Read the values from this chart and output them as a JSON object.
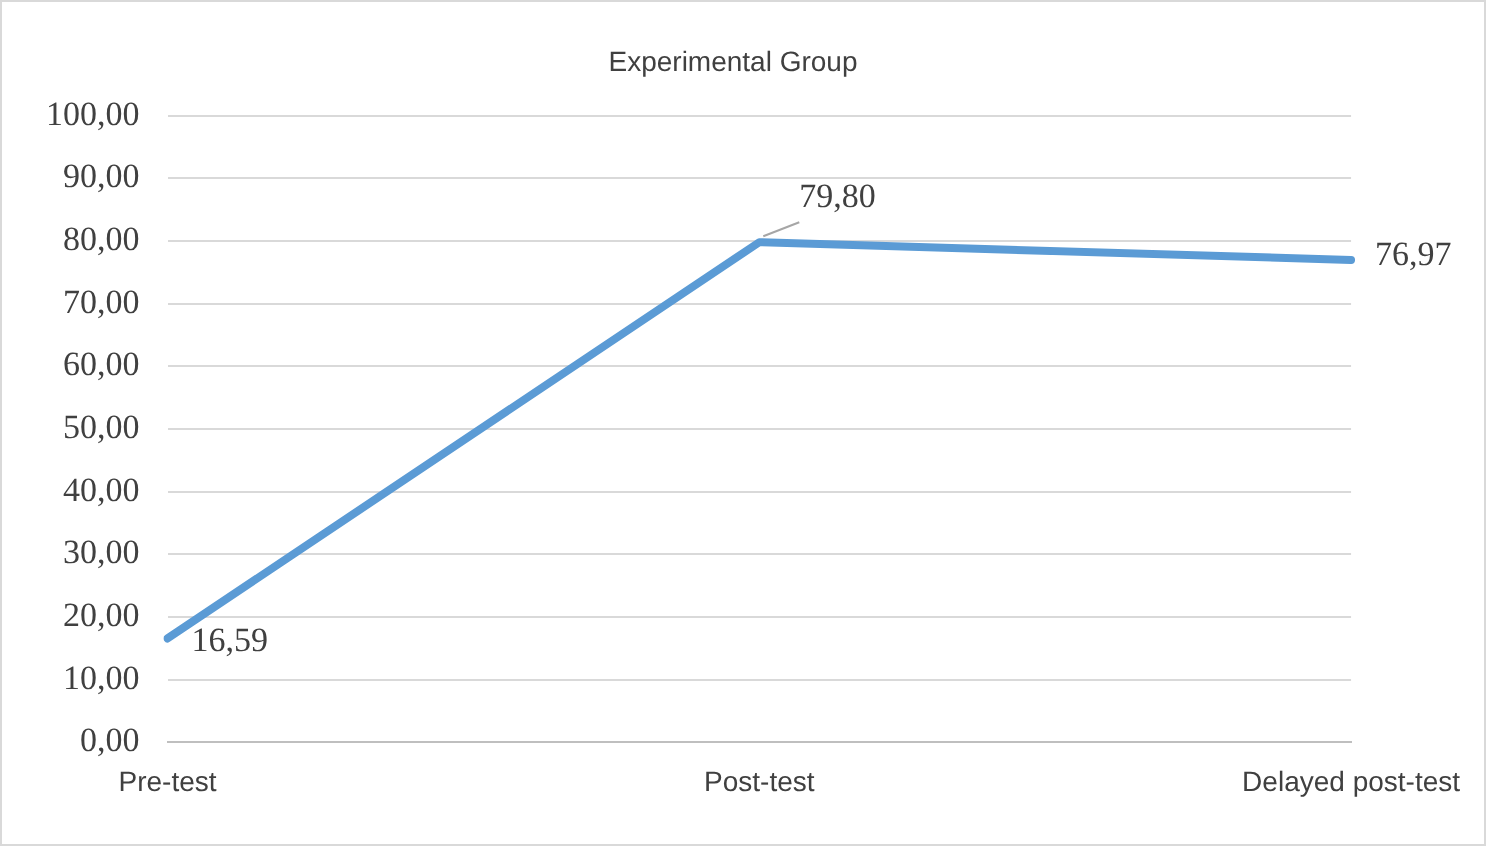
{
  "chart_data": {
    "type": "line",
    "title": "Experimental Group",
    "categories": [
      "Pre-test",
      "Post-test",
      "Delayed post-test"
    ],
    "series": [
      {
        "color": "#5b9bd5",
        "values": [
          16.59,
          79.8,
          76.97
        ],
        "value_labels": [
          "16,59",
          "79,80",
          "76,97"
        ]
      }
    ],
    "ylim": [
      0,
      100
    ],
    "yticks": [
      {
        "value": 0,
        "label": "0,00"
      },
      {
        "value": 10,
        "label": "10,00"
      },
      {
        "value": 20,
        "label": "20,00"
      },
      {
        "value": 30,
        "label": "30,00"
      },
      {
        "value": 40,
        "label": "40,00"
      },
      {
        "value": 50,
        "label": "50,00"
      },
      {
        "value": 60,
        "label": "60,00"
      },
      {
        "value": 70,
        "label": "70,00"
      },
      {
        "value": 80,
        "label": "80,00"
      },
      {
        "value": 90,
        "label": "90,00"
      },
      {
        "value": 100,
        "label": "100,00"
      }
    ],
    "grid": "y",
    "legend": false,
    "marker": "none",
    "line_style": "solid"
  }
}
